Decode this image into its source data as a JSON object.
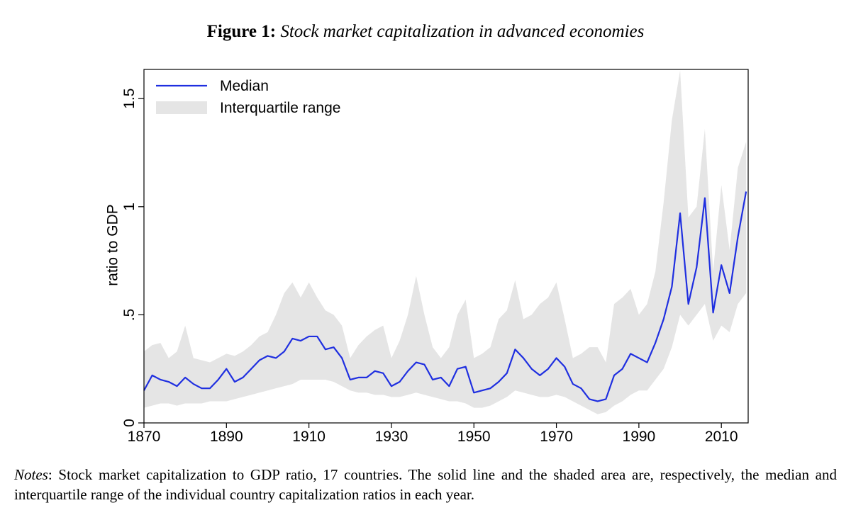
{
  "chart_data": {
    "type": "line",
    "title_label": "Figure 1:",
    "title": "Stock market capitalization in advanced economies",
    "y_label": "ratio to GDP",
    "x": [
      1870,
      1872,
      1874,
      1876,
      1878,
      1880,
      1882,
      1884,
      1886,
      1888,
      1890,
      1892,
      1894,
      1896,
      1898,
      1900,
      1902,
      1904,
      1906,
      1908,
      1910,
      1912,
      1914,
      1916,
      1918,
      1920,
      1922,
      1924,
      1926,
      1928,
      1930,
      1932,
      1934,
      1936,
      1938,
      1940,
      1942,
      1944,
      1946,
      1948,
      1950,
      1952,
      1954,
      1956,
      1958,
      1960,
      1962,
      1964,
      1966,
      1968,
      1970,
      1972,
      1974,
      1976,
      1978,
      1980,
      1982,
      1984,
      1986,
      1988,
      1990,
      1992,
      1994,
      1996,
      1998,
      2000,
      2002,
      2004,
      2006,
      2008,
      2010,
      2012,
      2014,
      2016
    ],
    "series": [
      {
        "name": "Median",
        "color": "#1f2fe0",
        "values": [
          0.15,
          0.22,
          0.2,
          0.19,
          0.17,
          0.21,
          0.18,
          0.16,
          0.16,
          0.2,
          0.25,
          0.19,
          0.21,
          0.25,
          0.29,
          0.31,
          0.3,
          0.33,
          0.39,
          0.38,
          0.4,
          0.4,
          0.34,
          0.35,
          0.3,
          0.2,
          0.21,
          0.21,
          0.24,
          0.23,
          0.17,
          0.19,
          0.24,
          0.28,
          0.27,
          0.2,
          0.21,
          0.17,
          0.25,
          0.26,
          0.14,
          0.15,
          0.16,
          0.19,
          0.23,
          0.34,
          0.3,
          0.25,
          0.22,
          0.25,
          0.3,
          0.26,
          0.18,
          0.16,
          0.11,
          0.1,
          0.11,
          0.22,
          0.25,
          0.32,
          0.3,
          0.28,
          0.37,
          0.48,
          0.63,
          0.97,
          0.55,
          0.72,
          1.04,
          0.51,
          0.73,
          0.6,
          0.86,
          1.07
        ]
      },
      {
        "name": "Interquartile range",
        "color": "#e5e5e5",
        "low": [
          0.07,
          0.08,
          0.09,
          0.09,
          0.08,
          0.09,
          0.09,
          0.09,
          0.1,
          0.1,
          0.1,
          0.11,
          0.12,
          0.13,
          0.14,
          0.15,
          0.16,
          0.17,
          0.18,
          0.2,
          0.2,
          0.2,
          0.2,
          0.19,
          0.17,
          0.15,
          0.14,
          0.14,
          0.13,
          0.13,
          0.12,
          0.12,
          0.13,
          0.14,
          0.13,
          0.12,
          0.11,
          0.1,
          0.1,
          0.09,
          0.07,
          0.07,
          0.08,
          0.1,
          0.12,
          0.15,
          0.14,
          0.13,
          0.12,
          0.12,
          0.13,
          0.12,
          0.1,
          0.08,
          0.06,
          0.04,
          0.05,
          0.08,
          0.1,
          0.13,
          0.15,
          0.15,
          0.2,
          0.25,
          0.35,
          0.5,
          0.45,
          0.5,
          0.55,
          0.38,
          0.45,
          0.42,
          0.55,
          0.6
        ],
        "high": [
          0.33,
          0.36,
          0.37,
          0.3,
          0.33,
          0.45,
          0.3,
          0.29,
          0.28,
          0.3,
          0.32,
          0.31,
          0.33,
          0.36,
          0.4,
          0.42,
          0.5,
          0.6,
          0.65,
          0.58,
          0.65,
          0.58,
          0.52,
          0.5,
          0.45,
          0.3,
          0.36,
          0.4,
          0.43,
          0.45,
          0.3,
          0.38,
          0.5,
          0.68,
          0.5,
          0.35,
          0.3,
          0.35,
          0.5,
          0.57,
          0.3,
          0.32,
          0.35,
          0.48,
          0.52,
          0.66,
          0.48,
          0.5,
          0.55,
          0.58,
          0.65,
          0.48,
          0.3,
          0.32,
          0.35,
          0.35,
          0.28,
          0.55,
          0.58,
          0.62,
          0.5,
          0.55,
          0.7,
          1.02,
          1.4,
          1.63,
          0.95,
          1.0,
          1.36,
          0.7,
          1.1,
          0.8,
          1.18,
          1.3
        ]
      }
    ],
    "xlim": [
      1870,
      2016.5
    ],
    "xticks": [
      1870,
      1890,
      1910,
      1930,
      1950,
      1970,
      1990,
      2010
    ],
    "ylim": [
      0,
      1.635
    ],
    "yticks": [
      0,
      {
        "value": 0.5,
        "label": ".5"
      },
      1,
      1.5
    ],
    "legend": "top-left",
    "notes_label": "Notes",
    "notes": ": Stock market capitalization to GDP ratio, 17 countries. The solid line and the shaded area are, respectively, the median and interquartile range of the individual country capitalization ratios in each year."
  }
}
